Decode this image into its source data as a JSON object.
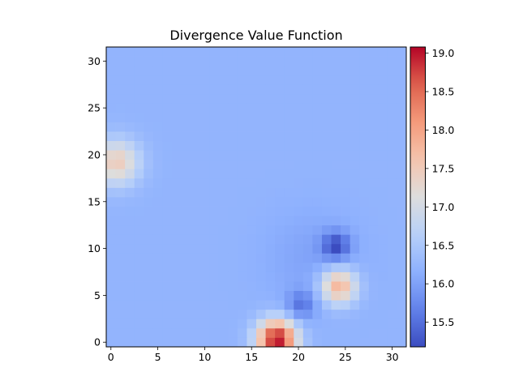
{
  "chart_data": {
    "type": "heatmap",
    "title": "Divergence Value Function",
    "xlabel": "",
    "ylabel": "",
    "grid_size": 32,
    "xlim": [
      -0.5,
      31.5
    ],
    "ylim": [
      -0.5,
      31.5
    ],
    "origin": "lower",
    "x_ticks": [
      "0",
      "5",
      "10",
      "15",
      "20",
      "25",
      "30"
    ],
    "y_ticks": [
      "0",
      "5",
      "10",
      "15",
      "20",
      "25",
      "30"
    ],
    "colormap": "coolwarm",
    "colorbar": {
      "vmin": 15.18,
      "vmax": 19.08,
      "ticks": [
        "15.5",
        "16.0",
        "16.5",
        "17.0",
        "17.5",
        "18.0",
        "18.5",
        "19.0"
      ]
    },
    "background_value": 16.22,
    "features": [
      {
        "kind": "peak",
        "x": 17.7,
        "y": 0.3,
        "amplitude": 2.85,
        "sigma": 1.45
      },
      {
        "kind": "peak",
        "x": 24.3,
        "y": 6.0,
        "amplitude": 1.65,
        "sigma": 1.35
      },
      {
        "kind": "peak",
        "x": 0.6,
        "y": 19.2,
        "amplitude": 1.25,
        "sigma": 1.7
      },
      {
        "kind": "trough",
        "x": 24.0,
        "y": 10.3,
        "amplitude": -0.95,
        "sigma": 1.05
      },
      {
        "kind": "trough",
        "x": 20.3,
        "y": 4.0,
        "amplitude": -0.65,
        "sigma": 1.05
      },
      {
        "kind": "trough",
        "x": 21.5,
        "y": 9.0,
        "amplitude": -0.2,
        "sigma": 3.5
      }
    ]
  }
}
